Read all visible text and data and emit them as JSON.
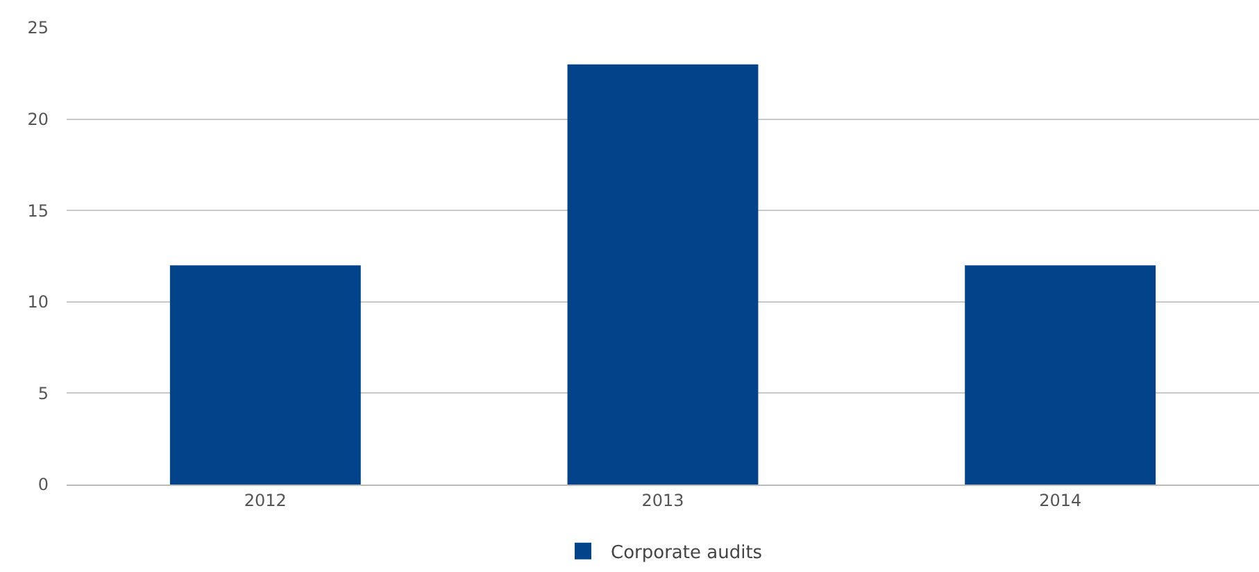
{
  "chart_data": {
    "type": "bar",
    "categories": [
      "2012",
      "2013",
      "2014"
    ],
    "series": [
      {
        "name": "Corporate audits",
        "color": "#03438a",
        "values": [
          12,
          23,
          12
        ]
      }
    ],
    "ylim": [
      0,
      25
    ],
    "yticks": [
      0,
      5,
      10,
      15,
      20,
      25
    ],
    "grid": "y",
    "legend": "bottom"
  }
}
